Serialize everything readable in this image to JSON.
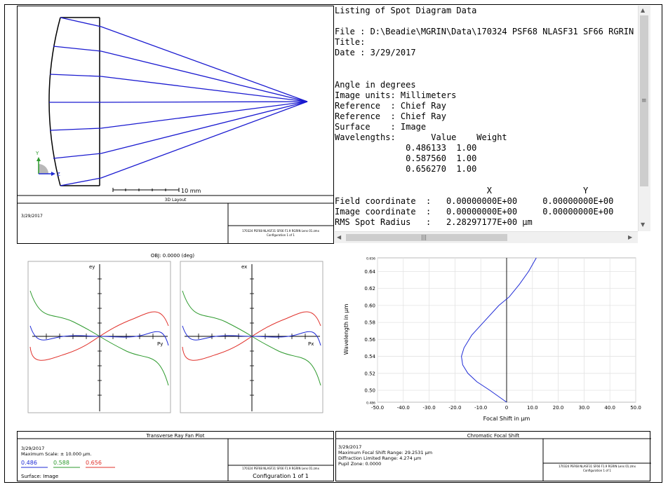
{
  "layout3d": {
    "title": "3D Layout",
    "scale_label": "10 mm",
    "date": "3/29/2017",
    "footer_file": "170324 PSF68 NLASF31 SF66 F1.9 RGRIN Lens 01.zmx",
    "footer_config": "Configuration 1 of 1",
    "axis_y": "Y",
    "axis_z": "Z"
  },
  "listing": {
    "lines": [
      "Listing of Spot Diagram Data",
      "",
      "File : D:\\Beadie\\MGRIN\\Data\\170324 PSF68 NLASF31 SF66 RGRIN",
      "Title:",
      "Date : 3/29/2017",
      "",
      "",
      "Angle in degrees",
      "Image units: Millimeters",
      "Reference  : Chief Ray",
      "Reference  : Chief Ray",
      "Surface    : Image",
      "Wavelengths:       Value    Weight",
      "              0.486133  1.00",
      "              0.587560  1.00",
      "              0.656270  1.00",
      "",
      "                              X                  Y",
      "Field coordinate  :   0.00000000E+00     0.00000000E+00",
      "Image coordinate  :   0.00000000E+00     0.00000000E+00",
      "RMS Spot Radius   :   2.28297177E+00 µm"
    ]
  },
  "rayfan": {
    "obj_label": "OBJ: 0.0000 (deg)",
    "ey_label": "ey",
    "ex_label": "ex",
    "py_label": "Py",
    "px_label": "Px",
    "panel_title": "Transverse Ray Fan Plot",
    "date": "3/29/2017",
    "max_scale": "Maximum Scale: ± 10.000 µm.",
    "wl1": "0.486",
    "wl2": "0.588",
    "wl3": "0.656",
    "surface": "Surface: Image",
    "footer_file": "170324 PSF68 NLASF31 SF66 F1.9 RGRIN Lens 01.zmx",
    "footer_config": "Configuration 1 of 1"
  },
  "chromatic": {
    "panel_title": "Chromatic Focal Shift",
    "date": "3/29/2017",
    "max_shift": "Maximum Focal Shift Range: 29.2531 µm",
    "diff_limited": "Diffraction Limited Range: 4.274 µm",
    "pupil_zone": "Pupil Zone: 0.0000",
    "footer_file": "170324 PSF68 NLASF31 SF66 F1.9 RGRIN Lens 01.zmx",
    "footer_config": "Configuration 1 of 1"
  },
  "colors": {
    "blue": "#1f2bd6",
    "green": "#2e9a2e",
    "red": "#e0302a",
    "lens": "#000000",
    "rays": "#1a1ad0"
  },
  "chart_data": {
    "type": "line",
    "title": "",
    "xlabel": "Focal Shift in µm",
    "ylabel": "Wavelength in µm",
    "xlim": [
      -50,
      50
    ],
    "ylim": [
      0.486,
      0.656
    ],
    "x_ticks": [
      "-50.0",
      "-40.0",
      "-30.0",
      "-20.0",
      "-10.0",
      "0",
      "10.0",
      "20.0",
      "30.0",
      "40.0",
      "50.0"
    ],
    "y_ticks": [
      "0.486",
      "0.50",
      "0.52",
      "0.54",
      "0.56",
      "0.58",
      "0.60",
      "0.62",
      "0.64",
      "0.656"
    ],
    "series": [
      {
        "x": [
          0.0,
          -6.5,
          -11.5,
          -15.0,
          -17.0,
          -17.5,
          -16.5,
          -13.5,
          -9.0,
          -3.0,
          1.0,
          5.0,
          8.5,
          11.5
        ],
        "y": [
          0.486,
          0.5,
          0.51,
          0.52,
          0.53,
          0.54,
          0.55,
          0.565,
          0.58,
          0.6,
          0.61,
          0.625,
          0.64,
          0.656
        ]
      }
    ],
    "grid": true
  }
}
